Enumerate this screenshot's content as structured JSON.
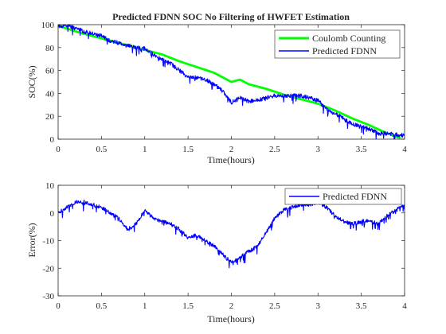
{
  "chart_data": [
    {
      "type": "line",
      "title": "Predicted FDNN SOC No Filtering of HWFET Estimation",
      "xlabel": "Time(hours)",
      "ylabel": "SOC(%)",
      "xlim": [
        0,
        4
      ],
      "ylim": [
        0,
        100
      ],
      "xticks": [
        "0",
        "0.5",
        "1",
        "1.5",
        "2",
        "2.5",
        "3",
        "3.5",
        "4"
      ],
      "yticks": [
        "0",
        "20",
        "40",
        "60",
        "80",
        "100"
      ],
      "legend_position": "top-right",
      "series": [
        {
          "name": "Coulomb Counting",
          "color": "#00ff00",
          "x": [
            0,
            0.25,
            0.5,
            0.75,
            1.0,
            1.2,
            1.4,
            1.6,
            1.8,
            1.9,
            2.0,
            2.1,
            2.2,
            2.4,
            2.6,
            2.8,
            3.0,
            3.2,
            3.4,
            3.6,
            3.8,
            3.95
          ],
          "y": [
            99,
            93,
            88,
            83,
            78,
            74,
            68,
            63,
            58,
            54,
            50,
            52,
            48,
            44,
            39,
            35,
            31,
            25,
            18,
            12,
            5,
            1
          ]
        },
        {
          "name": "Predicted FDNN",
          "color": "#0000ff",
          "x": [
            0,
            0.1,
            0.2,
            0.3,
            0.4,
            0.5,
            0.6,
            0.7,
            0.8,
            0.9,
            1.0,
            1.1,
            1.2,
            1.3,
            1.4,
            1.5,
            1.6,
            1.7,
            1.8,
            1.9,
            2.0,
            2.1,
            2.2,
            2.3,
            2.4,
            2.5,
            2.6,
            2.7,
            2.8,
            2.9,
            3.0,
            3.1,
            3.2,
            3.3,
            3.4,
            3.5,
            3.6,
            3.7,
            3.8,
            3.9,
            4.0
          ],
          "y": [
            99,
            99,
            97,
            94,
            92,
            90,
            86,
            84,
            82,
            80,
            79,
            74,
            70,
            66,
            60,
            54,
            54,
            52,
            48,
            42,
            32,
            36,
            33,
            34,
            36,
            38,
            38,
            38,
            38,
            36,
            34,
            26,
            22,
            18,
            13,
            11,
            9,
            5,
            5,
            4,
            3
          ]
        }
      ]
    },
    {
      "type": "line",
      "title": "",
      "xlabel": "Time(hours)",
      "ylabel": "Error(%)",
      "xlim": [
        0,
        4
      ],
      "ylim": [
        -30,
        10
      ],
      "xticks": [
        "0",
        "0.5",
        "1",
        "1.5",
        "2",
        "2.5",
        "3",
        "3.5",
        "4"
      ],
      "yticks": [
        "-30",
        "-20",
        "-10",
        "0",
        "10"
      ],
      "legend_position": "top-right",
      "series": [
        {
          "name": "Predicted FDNN",
          "color": "#0000ff",
          "x": [
            0,
            0.1,
            0.2,
            0.3,
            0.4,
            0.5,
            0.6,
            0.7,
            0.8,
            0.9,
            1.0,
            1.1,
            1.2,
            1.3,
            1.4,
            1.5,
            1.6,
            1.7,
            1.8,
            1.9,
            2.0,
            2.1,
            2.2,
            2.3,
            2.4,
            2.5,
            2.6,
            2.7,
            2.8,
            2.9,
            3.0,
            3.1,
            3.2,
            3.3,
            3.4,
            3.5,
            3.6,
            3.7,
            3.8,
            3.9,
            4.0
          ],
          "y": [
            0,
            2,
            4,
            4,
            3,
            2,
            0,
            -2,
            -6,
            -4,
            1,
            -2,
            -3,
            -4,
            -6,
            -9,
            -8,
            -10,
            -12,
            -15,
            -18,
            -16,
            -14,
            -12,
            -7,
            -2,
            1,
            2,
            3,
            3,
            4,
            2,
            -1,
            -3,
            -4,
            -3,
            -3,
            -4,
            -1,
            1,
            3
          ]
        }
      ]
    }
  ]
}
